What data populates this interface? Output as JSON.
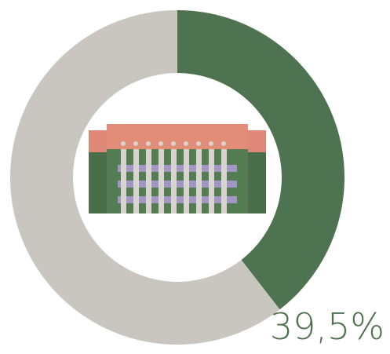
{
  "chart_data": {
    "type": "pie",
    "donut": true,
    "categories": [
      null,
      null
    ],
    "values": [
      39.5,
      60.5
    ],
    "value_labels": [
      "39,5%",
      null
    ],
    "colors": [
      "#4e7350",
      "#c9c5bf"
    ]
  }
}
